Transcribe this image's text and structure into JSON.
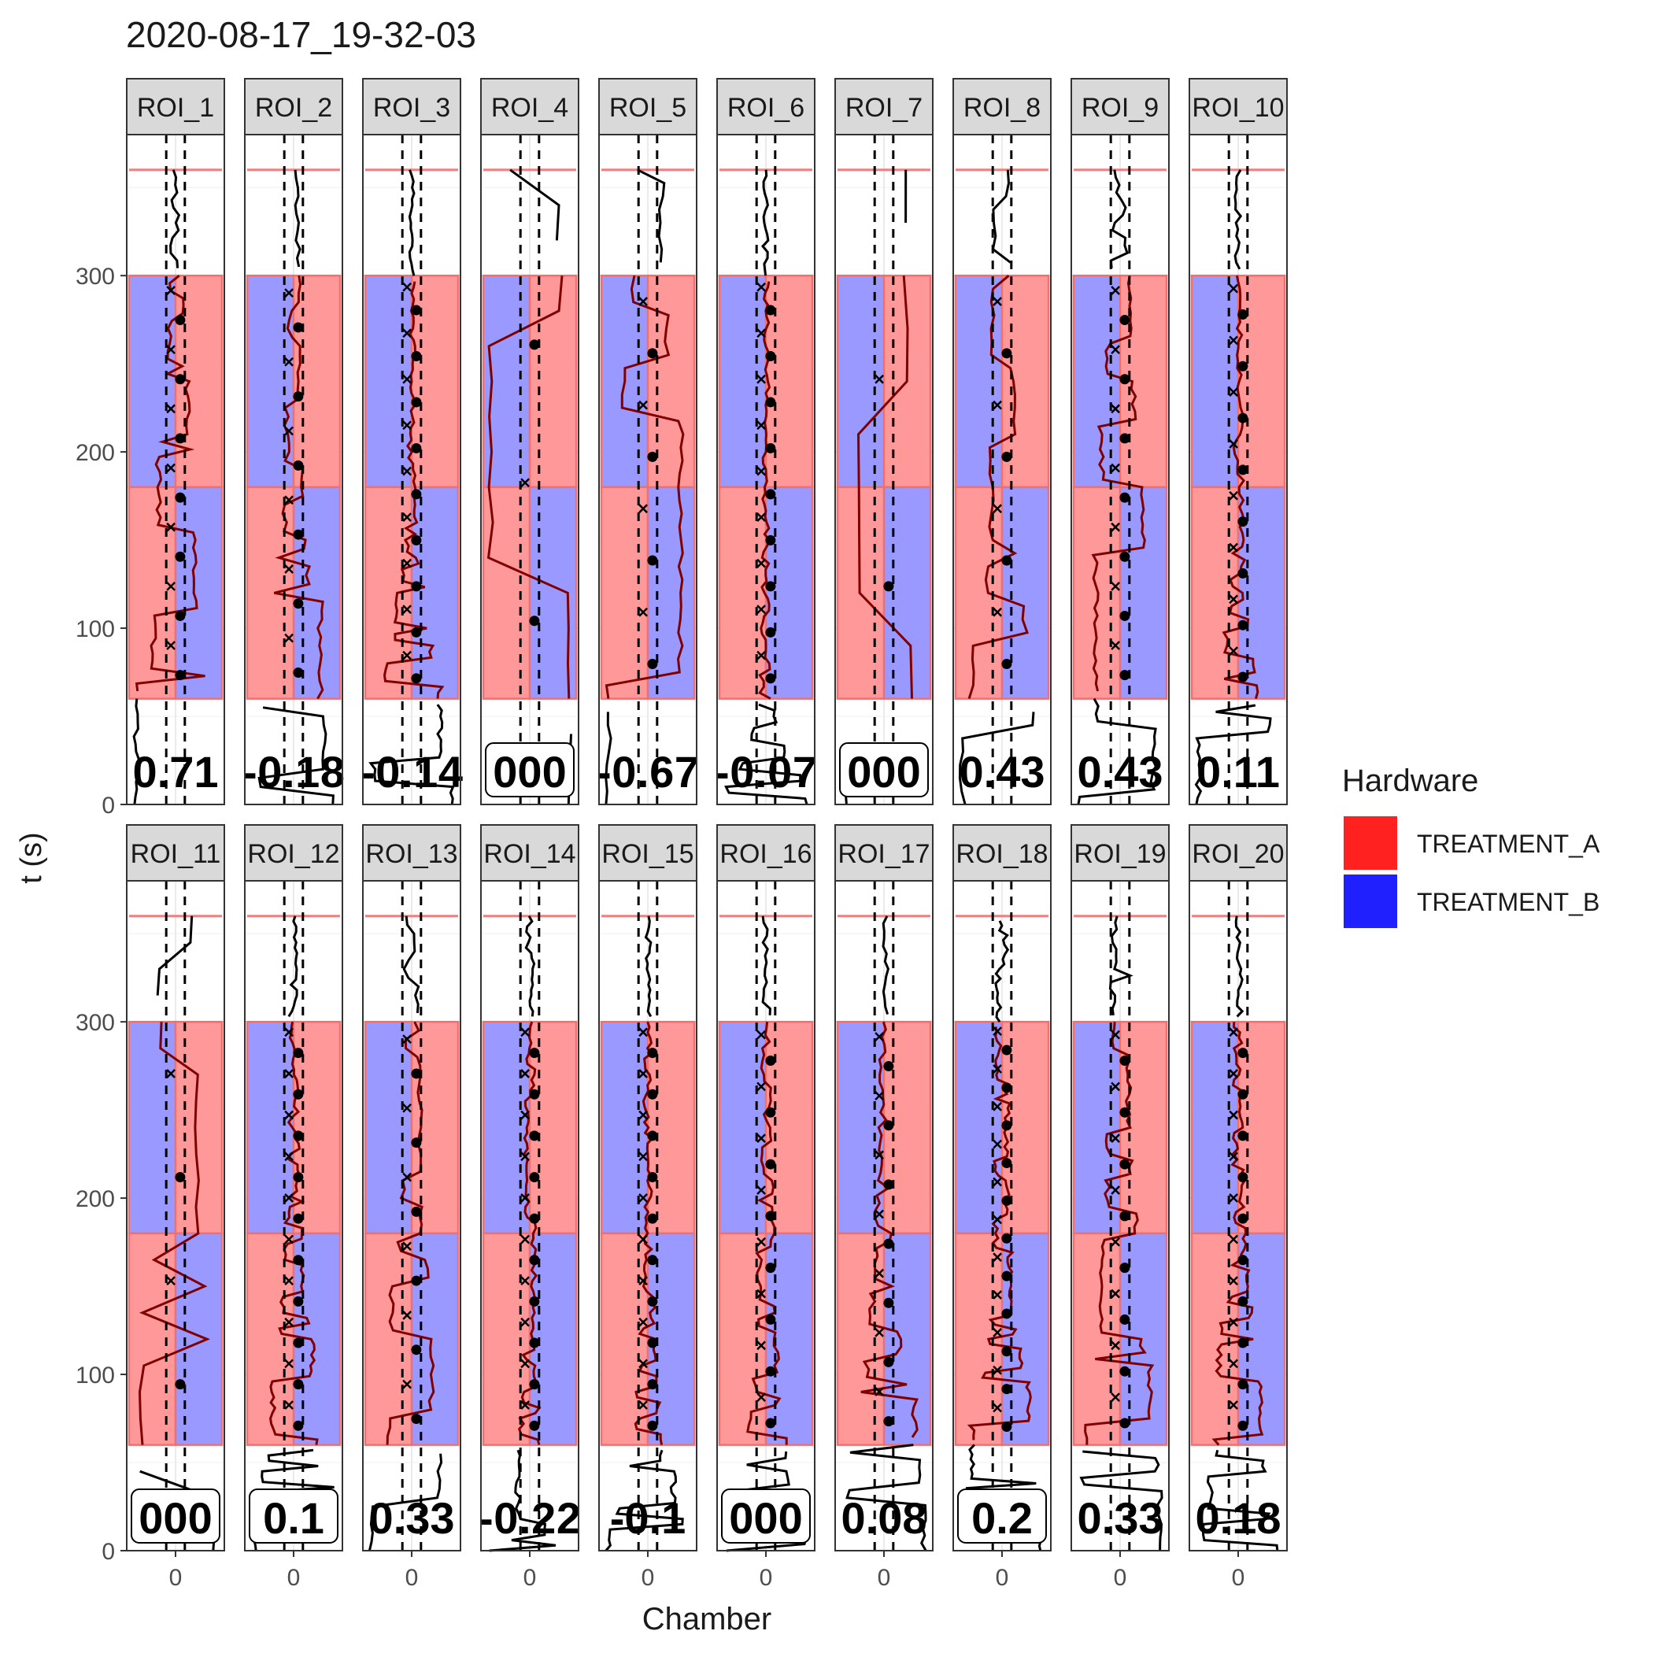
{
  "chart_data": {
    "type": "line",
    "title": "2020-08-17_19-32-03",
    "xlabel": "Chamber",
    "ylabel": "t (s)",
    "x_tick_label": "0",
    "ylim": [
      0,
      380
    ],
    "y_ticks": [
      0,
      100,
      200,
      300
    ],
    "horizontal_line_y": 360,
    "grid": true,
    "legend": {
      "title": "Hardware",
      "placement": "right",
      "entries": [
        {
          "label": "TREATMENT_A",
          "color": "#ff2020"
        },
        {
          "label": "TREATMENT_B",
          "color": "#2020ff"
        }
      ]
    },
    "colors": {
      "treatment_a_fill": "#ff9999",
      "treatment_b_fill": "#9999ff",
      "treatment_a_line": "#800000",
      "treatment_b_line": "#000080"
    },
    "panels": [
      {
        "label": "ROI_1",
        "score": "0.71",
        "boxed": false,
        "transitions": 14
      },
      {
        "label": "ROI_2",
        "score": "-0.18",
        "boxed": false,
        "transitions": 12
      },
      {
        "label": "ROI_3",
        "score": "-0.14",
        "boxed": false,
        "transitions": 18
      },
      {
        "label": "ROI_4",
        "score": "000",
        "boxed": true,
        "transitions": 3
      },
      {
        "label": "ROI_5",
        "score": "-0.67",
        "boxed": false,
        "transitions": 8
      },
      {
        "label": "ROI_6",
        "score": "-0.07",
        "boxed": false,
        "transitions": 18
      },
      {
        "label": "ROI_7",
        "score": "000",
        "boxed": true,
        "transitions": 2
      },
      {
        "label": "ROI_8",
        "score": "0.43",
        "boxed": false,
        "transitions": 8
      },
      {
        "label": "ROI_9",
        "score": "0.43",
        "boxed": false,
        "transitions": 14
      },
      {
        "label": "ROI_10",
        "score": "0.11",
        "boxed": false,
        "transitions": 16
      },
      {
        "label": "ROI_11",
        "score": "000",
        "boxed": true,
        "transitions": 4
      },
      {
        "label": "ROI_12",
        "score": "0.1",
        "boxed": true,
        "transitions": 20
      },
      {
        "label": "ROI_13",
        "score": "0.33",
        "boxed": false,
        "transitions": 12
      },
      {
        "label": "ROI_14",
        "score": "-0.22",
        "boxed": false,
        "transitions": 20
      },
      {
        "label": "ROI_15",
        "score": "-0.1",
        "boxed": false,
        "transitions": 20
      },
      {
        "label": "ROI_16",
        "score": "000",
        "boxed": true,
        "transitions": 16
      },
      {
        "label": "ROI_17",
        "score": "0.08",
        "boxed": false,
        "transitions": 14
      },
      {
        "label": "ROI_18",
        "score": "0.2",
        "boxed": true,
        "transitions": 22
      },
      {
        "label": "ROI_19",
        "score": "0.33",
        "boxed": false,
        "transitions": 16
      },
      {
        "label": "ROI_20",
        "score": "0.18",
        "boxed": false,
        "transitions": 20
      }
    ]
  }
}
